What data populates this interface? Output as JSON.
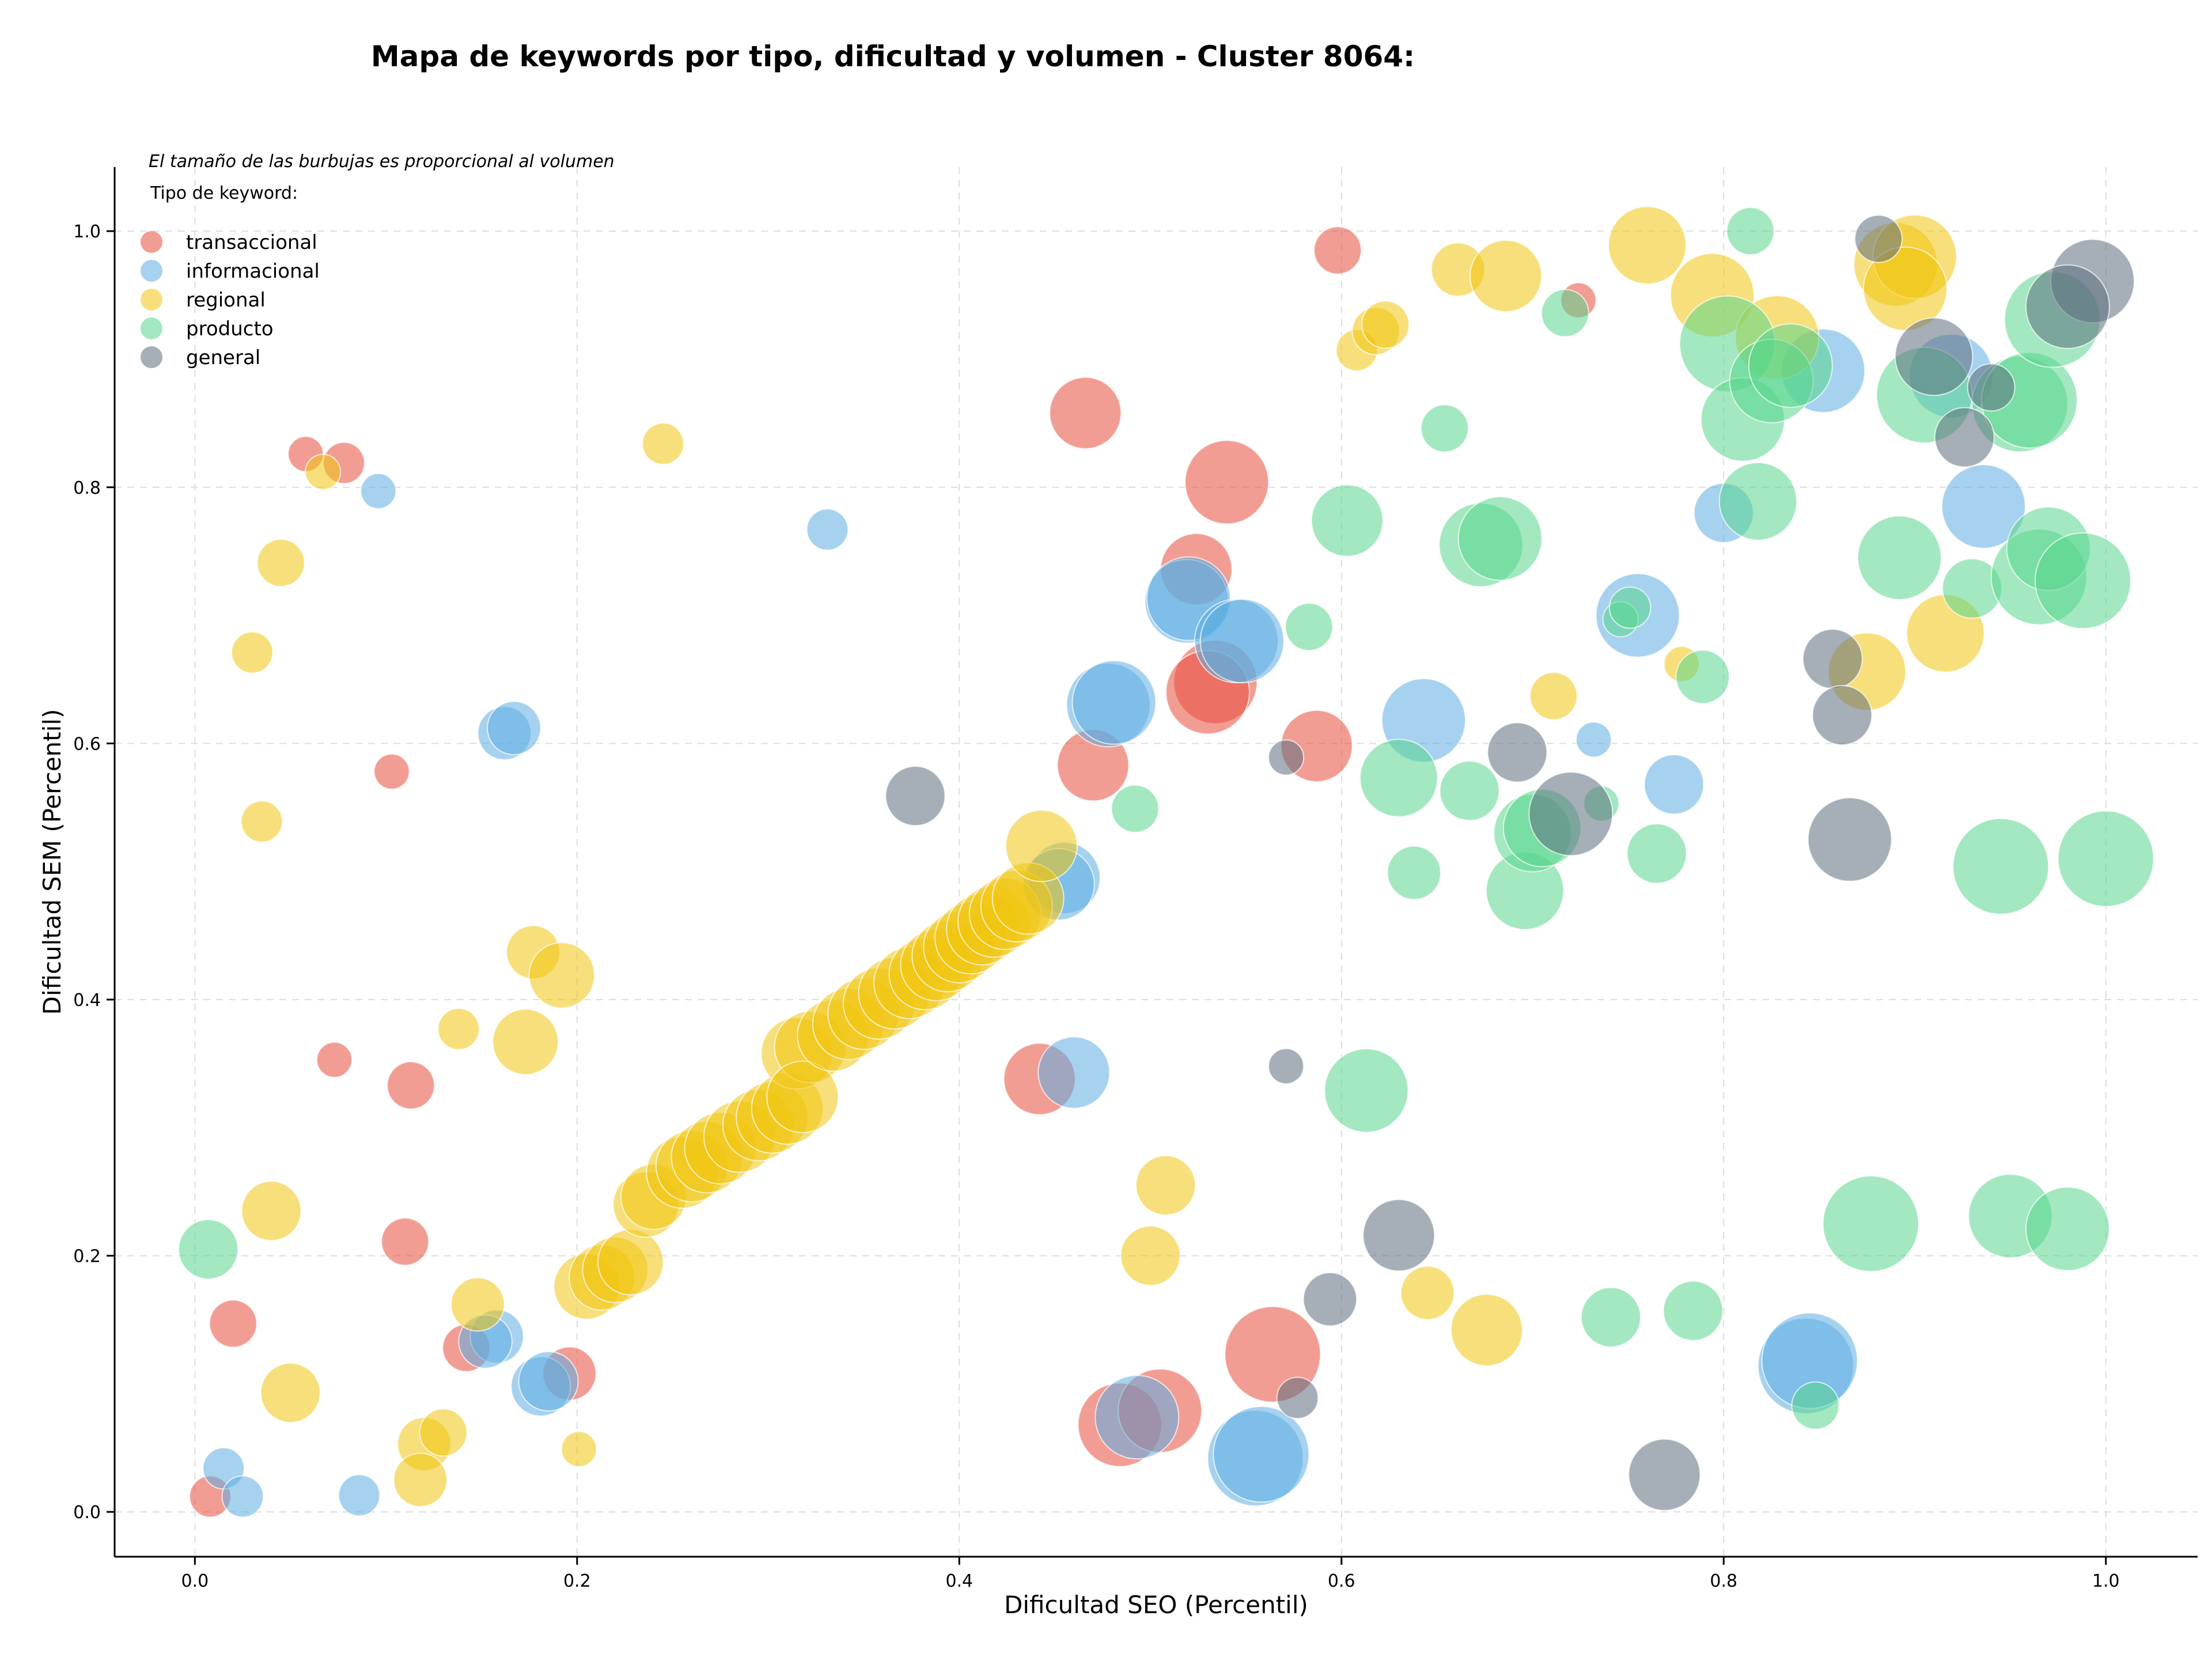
{
  "chart_data": {
    "type": "scatter",
    "title": "Mapa de keywords por tipo, dificultad y volumen - Cluster 8064:",
    "xlabel": "Dificultad SEO (Percentil)",
    "ylabel": "Dificultad SEM (Percentil)",
    "note": "El tamaño de las burbujas es proporcional al volumen",
    "legend_title": "Tipo de keyword:",
    "legend_placement": "top-left",
    "grid": true,
    "xlim": [
      -0.042,
      1.048
    ],
    "ylim": [
      -0.035,
      1.05
    ],
    "x_ticks": [
      0.0,
      0.2,
      0.4,
      0.6,
      0.8,
      1.0
    ],
    "x_tick_labels": [
      "0.0",
      "0.2",
      "0.4",
      "0.6",
      "0.8",
      "1.0"
    ],
    "y_ticks": [
      0.0,
      0.2,
      0.4,
      0.6,
      0.8,
      1.0
    ],
    "y_tick_labels": [
      "0.0",
      "0.2",
      "0.4",
      "0.6",
      "0.8",
      "1.0"
    ],
    "size_unit": "relative volume (bubble size)",
    "series": [
      {
        "name": "transaccional",
        "color": "#e74c3c",
        "points": [
          [
            0.598,
            0.985,
            2
          ],
          [
            0.724,
            0.946,
            1
          ],
          [
            0.466,
            0.858,
            4
          ],
          [
            0.54,
            0.804,
            5
          ],
          [
            0.524,
            0.736,
            4
          ],
          [
            0.534,
            0.648,
            5
          ],
          [
            0.53,
            0.64,
            5
          ],
          [
            0.47,
            0.583,
            4
          ],
          [
            0.587,
            0.598,
            4
          ],
          [
            0.058,
            0.826,
            1
          ],
          [
            0.078,
            0.819,
            1.5
          ],
          [
            0.103,
            0.578,
            1
          ],
          [
            0.073,
            0.353,
            1
          ],
          [
            0.113,
            0.333,
            2
          ],
          [
            0.11,
            0.211,
            2
          ],
          [
            0.02,
            0.147,
            2
          ],
          [
            0.008,
            0.012,
            1.5
          ],
          [
            0.142,
            0.128,
            2
          ],
          [
            0.196,
            0.108,
            2.5
          ],
          [
            0.442,
            0.338,
            4
          ],
          [
            0.564,
            0.123,
            6
          ],
          [
            0.484,
            0.068,
            5
          ],
          [
            0.505,
            0.079,
            5
          ]
        ]
      },
      {
        "name": "informacional",
        "color": "#5dade2",
        "points": [
          [
            0.096,
            0.797,
            1
          ],
          [
            0.331,
            0.767,
            1.5
          ],
          [
            0.162,
            0.608,
            2.5
          ],
          [
            0.167,
            0.612,
            2.5
          ],
          [
            0.519,
            0.711,
            5
          ],
          [
            0.52,
            0.713,
            5
          ],
          [
            0.545,
            0.68,
            5
          ],
          [
            0.548,
            0.68,
            5
          ],
          [
            0.478,
            0.63,
            5
          ],
          [
            0.481,
            0.632,
            5
          ],
          [
            0.455,
            0.495,
            4
          ],
          [
            0.452,
            0.49,
            4
          ],
          [
            0.46,
            0.343,
            4
          ],
          [
            0.643,
            0.618,
            5
          ],
          [
            0.732,
            0.603,
            1
          ],
          [
            0.774,
            0.568,
            3
          ],
          [
            0.755,
            0.7,
            5
          ],
          [
            0.852,
            0.891,
            5
          ],
          [
            0.919,
            0.887,
            5
          ],
          [
            0.936,
            0.785,
            5
          ],
          [
            0.8,
            0.78,
            3
          ],
          [
            0.158,
            0.137,
            2.5
          ],
          [
            0.152,
            0.133,
            2.5
          ],
          [
            0.181,
            0.098,
            3
          ],
          [
            0.185,
            0.102,
            3
          ],
          [
            0.015,
            0.034,
            1.5
          ],
          [
            0.025,
            0.012,
            1.5
          ],
          [
            0.086,
            0.013,
            1.5
          ],
          [
            0.555,
            0.042,
            6
          ],
          [
            0.558,
            0.045,
            6
          ],
          [
            0.493,
            0.074,
            5
          ],
          [
            0.843,
            0.114,
            6
          ],
          [
            0.845,
            0.118,
            6
          ]
        ]
      },
      {
        "name": "regional",
        "color": "#f1c40f",
        "points": [
          [
            0.245,
            0.834,
            1.5
          ],
          [
            0.067,
            0.812,
            1
          ],
          [
            0.045,
            0.741,
            2
          ],
          [
            0.03,
            0.671,
            1.5
          ],
          [
            0.035,
            0.539,
            1.5
          ],
          [
            0.177,
            0.437,
            2.5
          ],
          [
            0.192,
            0.419,
            3.5
          ],
          [
            0.173,
            0.367,
            3.5
          ],
          [
            0.138,
            0.377,
            1.5
          ],
          [
            0.04,
            0.235,
            3
          ],
          [
            0.148,
            0.162,
            2.5
          ],
          [
            0.05,
            0.093,
            3
          ],
          [
            0.12,
            0.053,
            2.5
          ],
          [
            0.13,
            0.062,
            2
          ],
          [
            0.118,
            0.025,
            2.5
          ],
          [
            0.201,
            0.049,
            1
          ],
          [
            0.205,
            0.176,
            3.5
          ],
          [
            0.213,
            0.183,
            3.5
          ],
          [
            0.22,
            0.189,
            3.5
          ],
          [
            0.228,
            0.195,
            3.5
          ],
          [
            0.236,
            0.24,
            3.5
          ],
          [
            0.24,
            0.246,
            3.5
          ],
          [
            0.255,
            0.265,
            4
          ],
          [
            0.26,
            0.27,
            4
          ],
          [
            0.268,
            0.277,
            4
          ],
          [
            0.275,
            0.284,
            4
          ],
          [
            0.285,
            0.293,
            4
          ],
          [
            0.295,
            0.302,
            4
          ],
          [
            0.302,
            0.308,
            4
          ],
          [
            0.31,
            0.315,
            4
          ],
          [
            0.315,
            0.358,
            4
          ],
          [
            0.322,
            0.363,
            4
          ],
          [
            0.318,
            0.324,
            4
          ],
          [
            0.334,
            0.372,
            4
          ],
          [
            0.342,
            0.381,
            4
          ],
          [
            0.35,
            0.389,
            4
          ],
          [
            0.358,
            0.397,
            4
          ],
          [
            0.366,
            0.405,
            4
          ],
          [
            0.374,
            0.413,
            4
          ],
          [
            0.382,
            0.42,
            4
          ],
          [
            0.388,
            0.427,
            4
          ],
          [
            0.394,
            0.434,
            4
          ],
          [
            0.4,
            0.441,
            4
          ],
          [
            0.406,
            0.448,
            4
          ],
          [
            0.412,
            0.455,
            4
          ],
          [
            0.418,
            0.461,
            4
          ],
          [
            0.424,
            0.467,
            4
          ],
          [
            0.43,
            0.473,
            4
          ],
          [
            0.436,
            0.479,
            4
          ],
          [
            0.443,
            0.52,
            4
          ],
          [
            0.508,
            0.255,
            3
          ],
          [
            0.5,
            0.2,
            3
          ],
          [
            0.645,
            0.171,
            2.5
          ],
          [
            0.676,
            0.142,
            4
          ],
          [
            0.608,
            0.907,
            1.5
          ],
          [
            0.618,
            0.922,
            2
          ],
          [
            0.623,
            0.927,
            2
          ],
          [
            0.661,
            0.97,
            2.5
          ],
          [
            0.686,
            0.965,
            4
          ],
          [
            0.76,
            0.989,
            4.5
          ],
          [
            0.794,
            0.95,
            5
          ],
          [
            0.828,
            0.917,
            5
          ],
          [
            0.89,
            0.974,
            5
          ],
          [
            0.9,
            0.98,
            5
          ],
          [
            0.895,
            0.955,
            5
          ],
          [
            0.711,
            0.637,
            2
          ],
          [
            0.778,
            0.662,
            1
          ],
          [
            0.875,
            0.656,
            4.5
          ],
          [
            0.916,
            0.686,
            4.5
          ]
        ]
      },
      {
        "name": "producto",
        "color": "#58d68d",
        "points": [
          [
            0.007,
            0.205,
            3
          ],
          [
            0.492,
            0.549,
            2
          ],
          [
            0.583,
            0.691,
            2
          ],
          [
            0.603,
            0.774,
            4
          ],
          [
            0.63,
            0.573,
            4.5
          ],
          [
            0.638,
            0.499,
            2.5
          ],
          [
            0.667,
            0.563,
            3
          ],
          [
            0.673,
            0.755,
            5
          ],
          [
            0.683,
            0.76,
            5
          ],
          [
            0.696,
            0.485,
            4.5
          ],
          [
            0.7,
            0.53,
            4.5
          ],
          [
            0.705,
            0.534,
            4.5
          ],
          [
            0.736,
            0.553,
            1
          ],
          [
            0.746,
            0.697,
            1
          ],
          [
            0.751,
            0.706,
            1.5
          ],
          [
            0.765,
            0.514,
            3
          ],
          [
            0.789,
            0.652,
            2.5
          ],
          [
            0.654,
            0.846,
            2
          ],
          [
            0.717,
            0.936,
            2
          ],
          [
            0.814,
            1.0,
            2
          ],
          [
            0.802,
            0.912,
            6
          ],
          [
            0.81,
            0.853,
            5
          ],
          [
            0.818,
            0.789,
            4.5
          ],
          [
            0.825,
            0.883,
            5
          ],
          [
            0.835,
            0.895,
            5
          ],
          [
            0.892,
            0.745,
            5
          ],
          [
            0.905,
            0.872,
            6
          ],
          [
            0.93,
            0.721,
            3
          ],
          [
            0.955,
            0.865,
            6
          ],
          [
            0.96,
            0.868,
            6
          ],
          [
            0.972,
            0.931,
            6
          ],
          [
            0.965,
            0.73,
            6
          ],
          [
            0.97,
            0.752,
            5
          ],
          [
            0.988,
            0.727,
            6
          ],
          [
            0.945,
            0.504,
            6
          ],
          [
            1.0,
            0.51,
            6
          ],
          [
            0.95,
            0.231,
            5
          ],
          [
            0.98,
            0.221,
            5
          ],
          [
            0.877,
            0.225,
            6
          ],
          [
            0.613,
            0.329,
            5
          ],
          [
            0.741,
            0.152,
            3
          ],
          [
            0.784,
            0.157,
            3
          ],
          [
            0.848,
            0.083,
            2
          ]
        ]
      },
      {
        "name": "general",
        "color": "#5d6d7e",
        "points": [
          [
            0.377,
            0.559,
            3
          ],
          [
            0.571,
            0.589,
            1
          ],
          [
            0.692,
            0.593,
            3
          ],
          [
            0.72,
            0.545,
            5
          ],
          [
            0.571,
            0.348,
            1
          ],
          [
            0.63,
            0.216,
            4
          ],
          [
            0.594,
            0.166,
            2.5
          ],
          [
            0.577,
            0.089,
            1.5
          ],
          [
            0.769,
            0.029,
            4
          ],
          [
            0.866,
            0.525,
            5
          ],
          [
            0.857,
            0.666,
            3
          ],
          [
            0.862,
            0.622,
            3
          ],
          [
            0.881,
            0.994,
            2
          ],
          [
            0.91,
            0.902,
            4.5
          ],
          [
            0.926,
            0.839,
            3
          ],
          [
            0.94,
            0.878,
            2
          ],
          [
            0.993,
            0.961,
            5
          ],
          [
            0.98,
            0.941,
            5
          ]
        ]
      }
    ]
  }
}
